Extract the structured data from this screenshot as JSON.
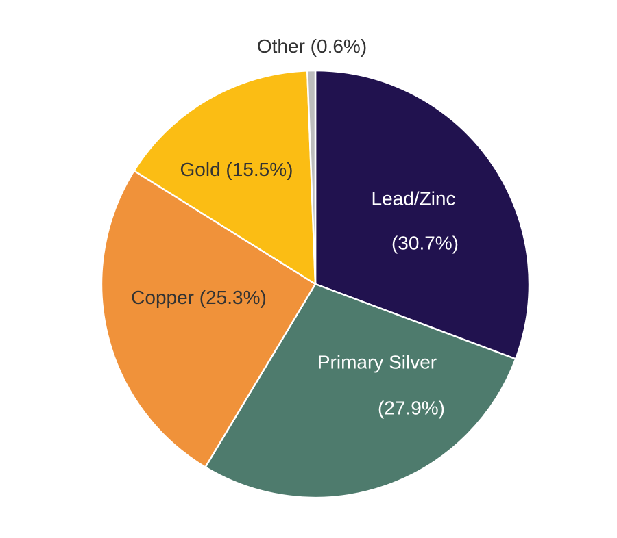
{
  "chart_data": {
    "type": "pie",
    "categories": [
      "Lead/Zinc",
      "Primary Silver",
      "Copper",
      "Gold",
      "Other"
    ],
    "values": [
      30.7,
      27.9,
      25.3,
      15.5,
      0.6
    ],
    "value_labels": [
      "(30.7%)",
      "(27.9%)",
      "(25.3%)",
      "(15.5%)",
      "(0.6%)"
    ],
    "colors": [
      "#21124f",
      "#4e7b6d",
      "#f0923a",
      "#fbbd14",
      "#bdbdbd"
    ]
  }
}
